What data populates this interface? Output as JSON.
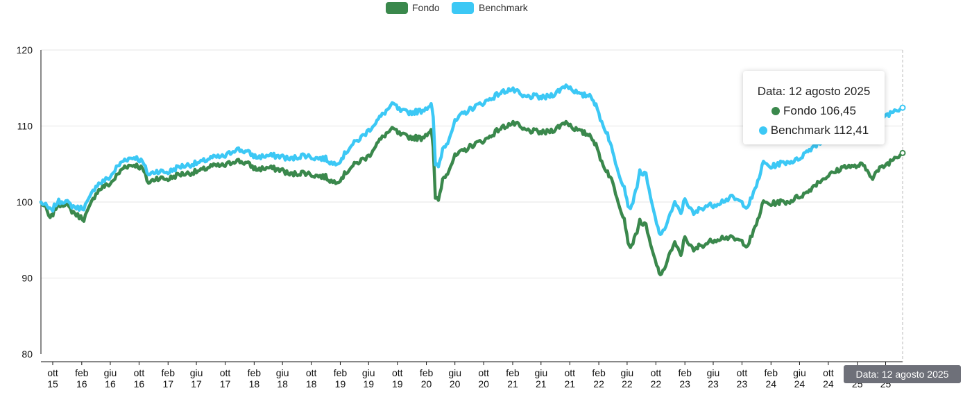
{
  "legend": {
    "fondo_label": "Fondo",
    "benchmark_label": "Benchmark"
  },
  "colors": {
    "fondo": "#3a884c",
    "benchmark": "#3cc8f5",
    "grid": "#e4e4e4",
    "axis": "#111111"
  },
  "tooltip": {
    "date_text": "Data: 12 agosto 2025",
    "fondo_text": "Fondo 106,45",
    "benchmark_text": "Benchmark 112,41"
  },
  "axis_pointer_label": "Data: 12 agosto 2025",
  "chart_data": {
    "type": "line",
    "y_range": [
      80,
      120
    ],
    "y_ticks": [
      80,
      90,
      100,
      110,
      120
    ],
    "grid": true,
    "legend_position": "top-center",
    "x_range": [
      "2015-08-12",
      "2025-08-12"
    ],
    "x_ticks": [
      {
        "date": "2015-10-01",
        "month": "ott",
        "year": "15"
      },
      {
        "date": "2016-02-01",
        "month": "feb",
        "year": "16"
      },
      {
        "date": "2016-06-01",
        "month": "giu",
        "year": "16"
      },
      {
        "date": "2016-10-01",
        "month": "ott",
        "year": "16"
      },
      {
        "date": "2017-02-01",
        "month": "feb",
        "year": "17"
      },
      {
        "date": "2017-06-01",
        "month": "giu",
        "year": "17"
      },
      {
        "date": "2017-10-01",
        "month": "ott",
        "year": "17"
      },
      {
        "date": "2018-02-01",
        "month": "feb",
        "year": "18"
      },
      {
        "date": "2018-06-01",
        "month": "giu",
        "year": "18"
      },
      {
        "date": "2018-10-01",
        "month": "ott",
        "year": "18"
      },
      {
        "date": "2019-02-01",
        "month": "feb",
        "year": "19"
      },
      {
        "date": "2019-06-01",
        "month": "giu",
        "year": "19"
      },
      {
        "date": "2019-10-01",
        "month": "ott",
        "year": "19"
      },
      {
        "date": "2020-02-01",
        "month": "feb",
        "year": "20"
      },
      {
        "date": "2020-06-01",
        "month": "giu",
        "year": "20"
      },
      {
        "date": "2020-10-01",
        "month": "ott",
        "year": "20"
      },
      {
        "date": "2021-02-01",
        "month": "feb",
        "year": "21"
      },
      {
        "date": "2021-06-01",
        "month": "giu",
        "year": "21"
      },
      {
        "date": "2021-10-01",
        "month": "ott",
        "year": "21"
      },
      {
        "date": "2022-02-01",
        "month": "feb",
        "year": "22"
      },
      {
        "date": "2022-06-01",
        "month": "giu",
        "year": "22"
      },
      {
        "date": "2022-10-01",
        "month": "ott",
        "year": "22"
      },
      {
        "date": "2023-02-01",
        "month": "feb",
        "year": "23"
      },
      {
        "date": "2023-06-01",
        "month": "giu",
        "year": "23"
      },
      {
        "date": "2023-10-01",
        "month": "ott",
        "year": "23"
      },
      {
        "date": "2024-02-01",
        "month": "feb",
        "year": "24"
      },
      {
        "date": "2024-06-01",
        "month": "giu",
        "year": "24"
      },
      {
        "date": "2024-10-01",
        "month": "ott",
        "year": "24"
      },
      {
        "date": "2025-02-01",
        "month": "feb",
        "year": "25"
      },
      {
        "date": "2025-06-01",
        "month": "giu",
        "year": "25"
      }
    ],
    "series": [
      {
        "name": "Fondo",
        "color": "#3a884c",
        "points": [
          [
            "2015-08-12",
            100.0
          ],
          [
            "2015-09-01",
            99.2
          ],
          [
            "2015-09-20",
            97.7
          ],
          [
            "2015-10-20",
            99.6
          ],
          [
            "2015-11-20",
            99.8
          ],
          [
            "2015-12-15",
            99.0
          ],
          [
            "2016-01-15",
            98.2
          ],
          [
            "2016-02-10",
            97.8
          ],
          [
            "2016-03-01",
            99.0
          ],
          [
            "2016-04-01",
            101.2
          ],
          [
            "2016-05-01",
            102.0
          ],
          [
            "2016-06-01",
            102.4
          ],
          [
            "2016-06-27",
            103.4
          ],
          [
            "2016-08-01",
            104.7
          ],
          [
            "2016-09-15",
            104.9
          ],
          [
            "2016-10-15",
            104.4
          ],
          [
            "2016-11-10",
            102.5
          ],
          [
            "2016-12-15",
            103.2
          ],
          [
            "2017-02-01",
            103.0
          ],
          [
            "2017-03-15",
            103.6
          ],
          [
            "2017-05-01",
            103.8
          ],
          [
            "2017-06-20",
            104.1
          ],
          [
            "2017-08-01",
            104.7
          ],
          [
            "2017-10-01",
            104.8
          ],
          [
            "2017-11-15",
            105.5
          ],
          [
            "2018-01-01",
            105.1
          ],
          [
            "2018-02-10",
            104.3
          ],
          [
            "2018-04-01",
            104.5
          ],
          [
            "2018-06-01",
            104.2
          ],
          [
            "2018-07-01",
            103.6
          ],
          [
            "2018-09-01",
            103.9
          ],
          [
            "2018-10-15",
            103.5
          ],
          [
            "2018-12-01",
            103.3
          ],
          [
            "2018-12-31",
            102.6
          ],
          [
            "2019-02-01",
            103.0
          ],
          [
            "2019-03-15",
            104.5
          ],
          [
            "2019-05-01",
            105.5
          ],
          [
            "2019-06-01",
            106.0
          ],
          [
            "2019-07-01",
            107.5
          ],
          [
            "2019-08-15",
            109.0
          ],
          [
            "2019-09-15",
            109.6
          ],
          [
            "2019-10-15",
            108.8
          ],
          [
            "2019-12-01",
            108.5
          ],
          [
            "2020-01-10",
            108.4
          ],
          [
            "2020-02-10",
            109.2
          ],
          [
            "2020-02-21",
            109.6
          ],
          [
            "2020-03-01",
            107.0
          ],
          [
            "2020-03-10",
            100.6
          ],
          [
            "2020-03-23",
            100.2
          ],
          [
            "2020-04-10",
            103.0
          ],
          [
            "2020-05-01",
            104.0
          ],
          [
            "2020-06-01",
            106.0
          ],
          [
            "2020-07-01",
            106.6
          ],
          [
            "2020-08-15",
            107.5
          ],
          [
            "2020-10-15",
            108.3
          ],
          [
            "2020-12-01",
            109.5
          ],
          [
            "2021-01-15",
            110.2
          ],
          [
            "2021-02-15",
            110.3
          ],
          [
            "2021-03-15",
            109.5
          ],
          [
            "2021-05-01",
            109.3
          ],
          [
            "2021-06-15",
            109.1
          ],
          [
            "2021-08-01",
            109.6
          ],
          [
            "2021-09-15",
            110.6
          ],
          [
            "2021-10-15",
            109.8
          ],
          [
            "2021-11-15",
            109.2
          ],
          [
            "2021-12-30",
            108.8
          ],
          [
            "2022-01-20",
            107.4
          ],
          [
            "2022-02-20",
            104.8
          ],
          [
            "2022-03-10",
            104.0
          ],
          [
            "2022-04-01",
            102.5
          ],
          [
            "2022-05-01",
            99.5
          ],
          [
            "2022-05-20",
            97.8
          ],
          [
            "2022-06-10",
            94.0
          ],
          [
            "2022-07-01",
            95.0
          ],
          [
            "2022-07-25",
            97.5
          ],
          [
            "2022-08-20",
            96.8
          ],
          [
            "2022-09-15",
            93.5
          ],
          [
            "2022-10-10",
            91.2
          ],
          [
            "2022-10-25",
            90.2
          ],
          [
            "2022-11-25",
            93.0
          ],
          [
            "2022-12-20",
            94.5
          ],
          [
            "2023-01-15",
            93.0
          ],
          [
            "2023-02-01",
            95.5
          ],
          [
            "2023-03-10",
            93.5
          ],
          [
            "2023-04-01",
            94.2
          ],
          [
            "2023-05-01",
            94.5
          ],
          [
            "2023-06-01",
            95.0
          ],
          [
            "2023-07-15",
            95.4
          ],
          [
            "2023-08-20",
            95.2
          ],
          [
            "2023-10-01",
            94.8
          ],
          [
            "2023-10-25",
            94.3
          ],
          [
            "2023-11-25",
            96.5
          ],
          [
            "2023-12-31",
            100.0
          ],
          [
            "2024-02-01",
            99.7
          ],
          [
            "2024-03-01",
            100.0
          ],
          [
            "2024-04-15",
            100.0
          ],
          [
            "2024-05-20",
            100.6
          ],
          [
            "2024-07-01",
            101.2
          ],
          [
            "2024-08-05",
            102.3
          ],
          [
            "2024-09-20",
            103.3
          ],
          [
            "2024-11-01",
            104.0
          ],
          [
            "2024-12-15",
            104.8
          ],
          [
            "2025-01-15",
            104.6
          ],
          [
            "2025-02-20",
            104.9
          ],
          [
            "2025-04-07",
            103.3
          ],
          [
            "2025-05-01",
            104.2
          ],
          [
            "2025-06-15",
            105.2
          ],
          [
            "2025-07-15",
            106.0
          ],
          [
            "2025-08-12",
            106.45
          ]
        ]
      },
      {
        "name": "Benchmark",
        "color": "#3cc8f5",
        "points": [
          [
            "2015-08-12",
            100.0
          ],
          [
            "2015-09-01",
            99.5
          ],
          [
            "2015-09-25",
            98.8
          ],
          [
            "2015-10-20",
            100.0
          ],
          [
            "2015-11-20",
            100.2
          ],
          [
            "2015-12-15",
            99.6
          ],
          [
            "2016-01-15",
            99.2
          ],
          [
            "2016-02-10",
            99.3
          ],
          [
            "2016-03-01",
            100.2
          ],
          [
            "2016-04-01",
            102.2
          ],
          [
            "2016-05-01",
            102.7
          ],
          [
            "2016-06-01",
            103.3
          ],
          [
            "2016-06-27",
            104.5
          ],
          [
            "2016-08-01",
            105.6
          ],
          [
            "2016-09-15",
            105.9
          ],
          [
            "2016-10-15",
            105.3
          ],
          [
            "2016-11-10",
            103.6
          ],
          [
            "2016-12-15",
            104.1
          ],
          [
            "2017-02-01",
            103.9
          ],
          [
            "2017-03-15",
            104.6
          ],
          [
            "2017-05-01",
            104.9
          ],
          [
            "2017-06-20",
            105.2
          ],
          [
            "2017-08-01",
            105.8
          ],
          [
            "2017-10-01",
            106.0
          ],
          [
            "2017-11-15",
            107.0
          ],
          [
            "2018-01-01",
            106.6
          ],
          [
            "2018-02-10",
            105.9
          ],
          [
            "2018-04-01",
            106.1
          ],
          [
            "2018-06-01",
            106.0
          ],
          [
            "2018-07-01",
            105.6
          ],
          [
            "2018-09-01",
            106.2
          ],
          [
            "2018-10-15",
            105.8
          ],
          [
            "2018-12-01",
            105.7
          ],
          [
            "2018-12-31",
            105.0
          ],
          [
            "2019-02-01",
            105.5
          ],
          [
            "2019-03-15",
            107.3
          ],
          [
            "2019-05-01",
            108.5
          ],
          [
            "2019-06-01",
            109.4
          ],
          [
            "2019-07-01",
            110.5
          ],
          [
            "2019-08-15",
            112.0
          ],
          [
            "2019-09-15",
            112.9
          ],
          [
            "2019-10-15",
            111.9
          ],
          [
            "2019-12-01",
            111.8
          ],
          [
            "2020-01-10",
            112.0
          ],
          [
            "2020-02-10",
            112.6
          ],
          [
            "2020-02-21",
            113.0
          ],
          [
            "2020-03-01",
            111.0
          ],
          [
            "2020-03-10",
            105.0
          ],
          [
            "2020-03-23",
            104.6
          ],
          [
            "2020-04-10",
            107.0
          ],
          [
            "2020-05-01",
            108.0
          ],
          [
            "2020-06-01",
            110.5
          ],
          [
            "2020-07-01",
            111.5
          ],
          [
            "2020-08-15",
            112.4
          ],
          [
            "2020-10-15",
            113.3
          ],
          [
            "2020-12-01",
            114.2
          ],
          [
            "2021-01-15",
            114.8
          ],
          [
            "2021-02-15",
            114.6
          ],
          [
            "2021-03-15",
            113.8
          ],
          [
            "2021-05-01",
            113.9
          ],
          [
            "2021-06-15",
            113.7
          ],
          [
            "2021-08-01",
            114.3
          ],
          [
            "2021-09-15",
            115.4
          ],
          [
            "2021-10-15",
            114.8
          ],
          [
            "2021-11-15",
            114.0
          ],
          [
            "2021-12-30",
            114.1
          ],
          [
            "2022-01-20",
            112.6
          ],
          [
            "2022-02-20",
            110.0
          ],
          [
            "2022-03-10",
            109.0
          ],
          [
            "2022-04-01",
            106.5
          ],
          [
            "2022-05-01",
            103.5
          ],
          [
            "2022-05-20",
            102.0
          ],
          [
            "2022-06-10",
            99.0
          ],
          [
            "2022-07-01",
            100.5
          ],
          [
            "2022-07-25",
            104.0
          ],
          [
            "2022-08-20",
            103.5
          ],
          [
            "2022-09-15",
            99.5
          ],
          [
            "2022-10-10",
            96.5
          ],
          [
            "2022-10-25",
            95.5
          ],
          [
            "2022-11-25",
            98.0
          ],
          [
            "2022-12-20",
            99.8
          ],
          [
            "2023-01-15",
            98.5
          ],
          [
            "2023-02-01",
            100.5
          ],
          [
            "2023-03-10",
            98.3
          ],
          [
            "2023-04-01",
            99.0
          ],
          [
            "2023-05-01",
            99.5
          ],
          [
            "2023-06-01",
            99.6
          ],
          [
            "2023-07-15",
            100.2
          ],
          [
            "2023-08-20",
            100.6
          ],
          [
            "2023-10-01",
            99.9
          ],
          [
            "2023-10-25",
            99.4
          ],
          [
            "2023-11-25",
            101.5
          ],
          [
            "2023-12-31",
            105.2
          ],
          [
            "2024-02-01",
            104.6
          ],
          [
            "2024-03-01",
            105.0
          ],
          [
            "2024-04-15",
            105.3
          ],
          [
            "2024-05-20",
            105.5
          ],
          [
            "2024-07-01",
            106.6
          ],
          [
            "2024-08-05",
            107.5
          ],
          [
            "2024-09-20",
            108.2
          ],
          [
            "2024-11-01",
            108.8
          ],
          [
            "2024-12-15",
            109.8
          ],
          [
            "2025-01-15",
            110.3
          ],
          [
            "2025-02-20",
            110.6
          ],
          [
            "2025-04-07",
            110.0
          ],
          [
            "2025-05-01",
            111.0
          ],
          [
            "2025-06-15",
            111.6
          ],
          [
            "2025-07-15",
            112.2
          ],
          [
            "2025-08-12",
            112.41
          ]
        ]
      }
    ]
  }
}
